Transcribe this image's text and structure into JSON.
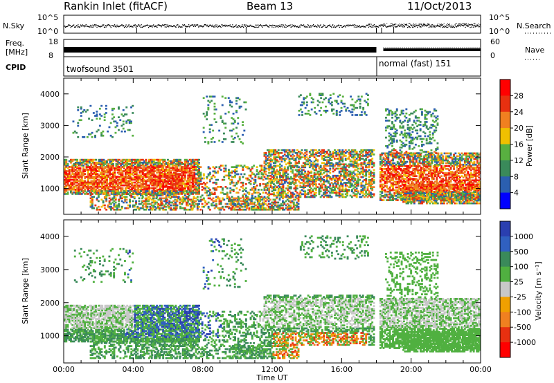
{
  "header": {
    "station": "Rankin Inlet (fitACF)",
    "beam": "Beam 13",
    "date": "11/Oct/2013"
  },
  "nsky_panel": {
    "left_label": "N.Sky",
    "right_label": "N.Search",
    "left_ticks": [
      "10^5",
      "10^0"
    ],
    "right_ticks": [
      "10^5",
      "10^0"
    ]
  },
  "freq_panel": {
    "left_label_line1": "Freq.",
    "left_label_line2": "[MHz]",
    "left_ticks": [
      "18",
      "8"
    ],
    "right_ticks": [
      "60",
      "0"
    ],
    "right_label": "Nave"
  },
  "cpid_panel": {
    "label": "CPID",
    "modes": [
      "twofsound 3501",
      "normal (fast) 151"
    ]
  },
  "colors": {
    "power": [
      "#0000ff",
      "#2b5fb0",
      "#3a8a5a",
      "#58b040",
      "#f0c000",
      "#f08020",
      "#e83010",
      "#ff0000"
    ],
    "velocity": [
      "#2a3fb0",
      "#3060c0",
      "#3a8a5a",
      "#50b040",
      "#c8c8c8",
      "#f0a000",
      "#f08020",
      "#e83010",
      "#ff0000"
    ]
  },
  "chart_data": [
    {
      "type": "heatmap",
      "name": "power",
      "ylabel": "Slant Range [km]",
      "xlabel": "",
      "yticks": [
        1000,
        2000,
        3000,
        4000
      ],
      "ylim": [
        180,
        4500
      ],
      "xticks": [
        "00:00",
        "04:00",
        "08:00",
        "12:00",
        "16:00",
        "20:00",
        "00:00"
      ],
      "xlim_hours": [
        0,
        24
      ],
      "colorbar_label": "Power [dB]",
      "colorbar_ticks": [
        "28",
        "24",
        "20",
        "16",
        "12",
        "8",
        "4"
      ]
    },
    {
      "type": "heatmap",
      "name": "velocity",
      "ylabel": "Slant Range [km]",
      "xlabel": "Time UT",
      "yticks": [
        1000,
        2000,
        3000,
        4000
      ],
      "ylim": [
        180,
        4500
      ],
      "xticks": [
        "00:00",
        "04:00",
        "08:00",
        "12:00",
        "16:00",
        "20:00",
        "00:00"
      ],
      "xlim_hours": [
        0,
        24
      ],
      "colorbar_label": "Velocity [m s⁻¹]",
      "colorbar_ticks": [
        "1000",
        "500",
        "100",
        "25",
        "-25",
        "-100",
        "-500",
        "-1000"
      ]
    }
  ]
}
